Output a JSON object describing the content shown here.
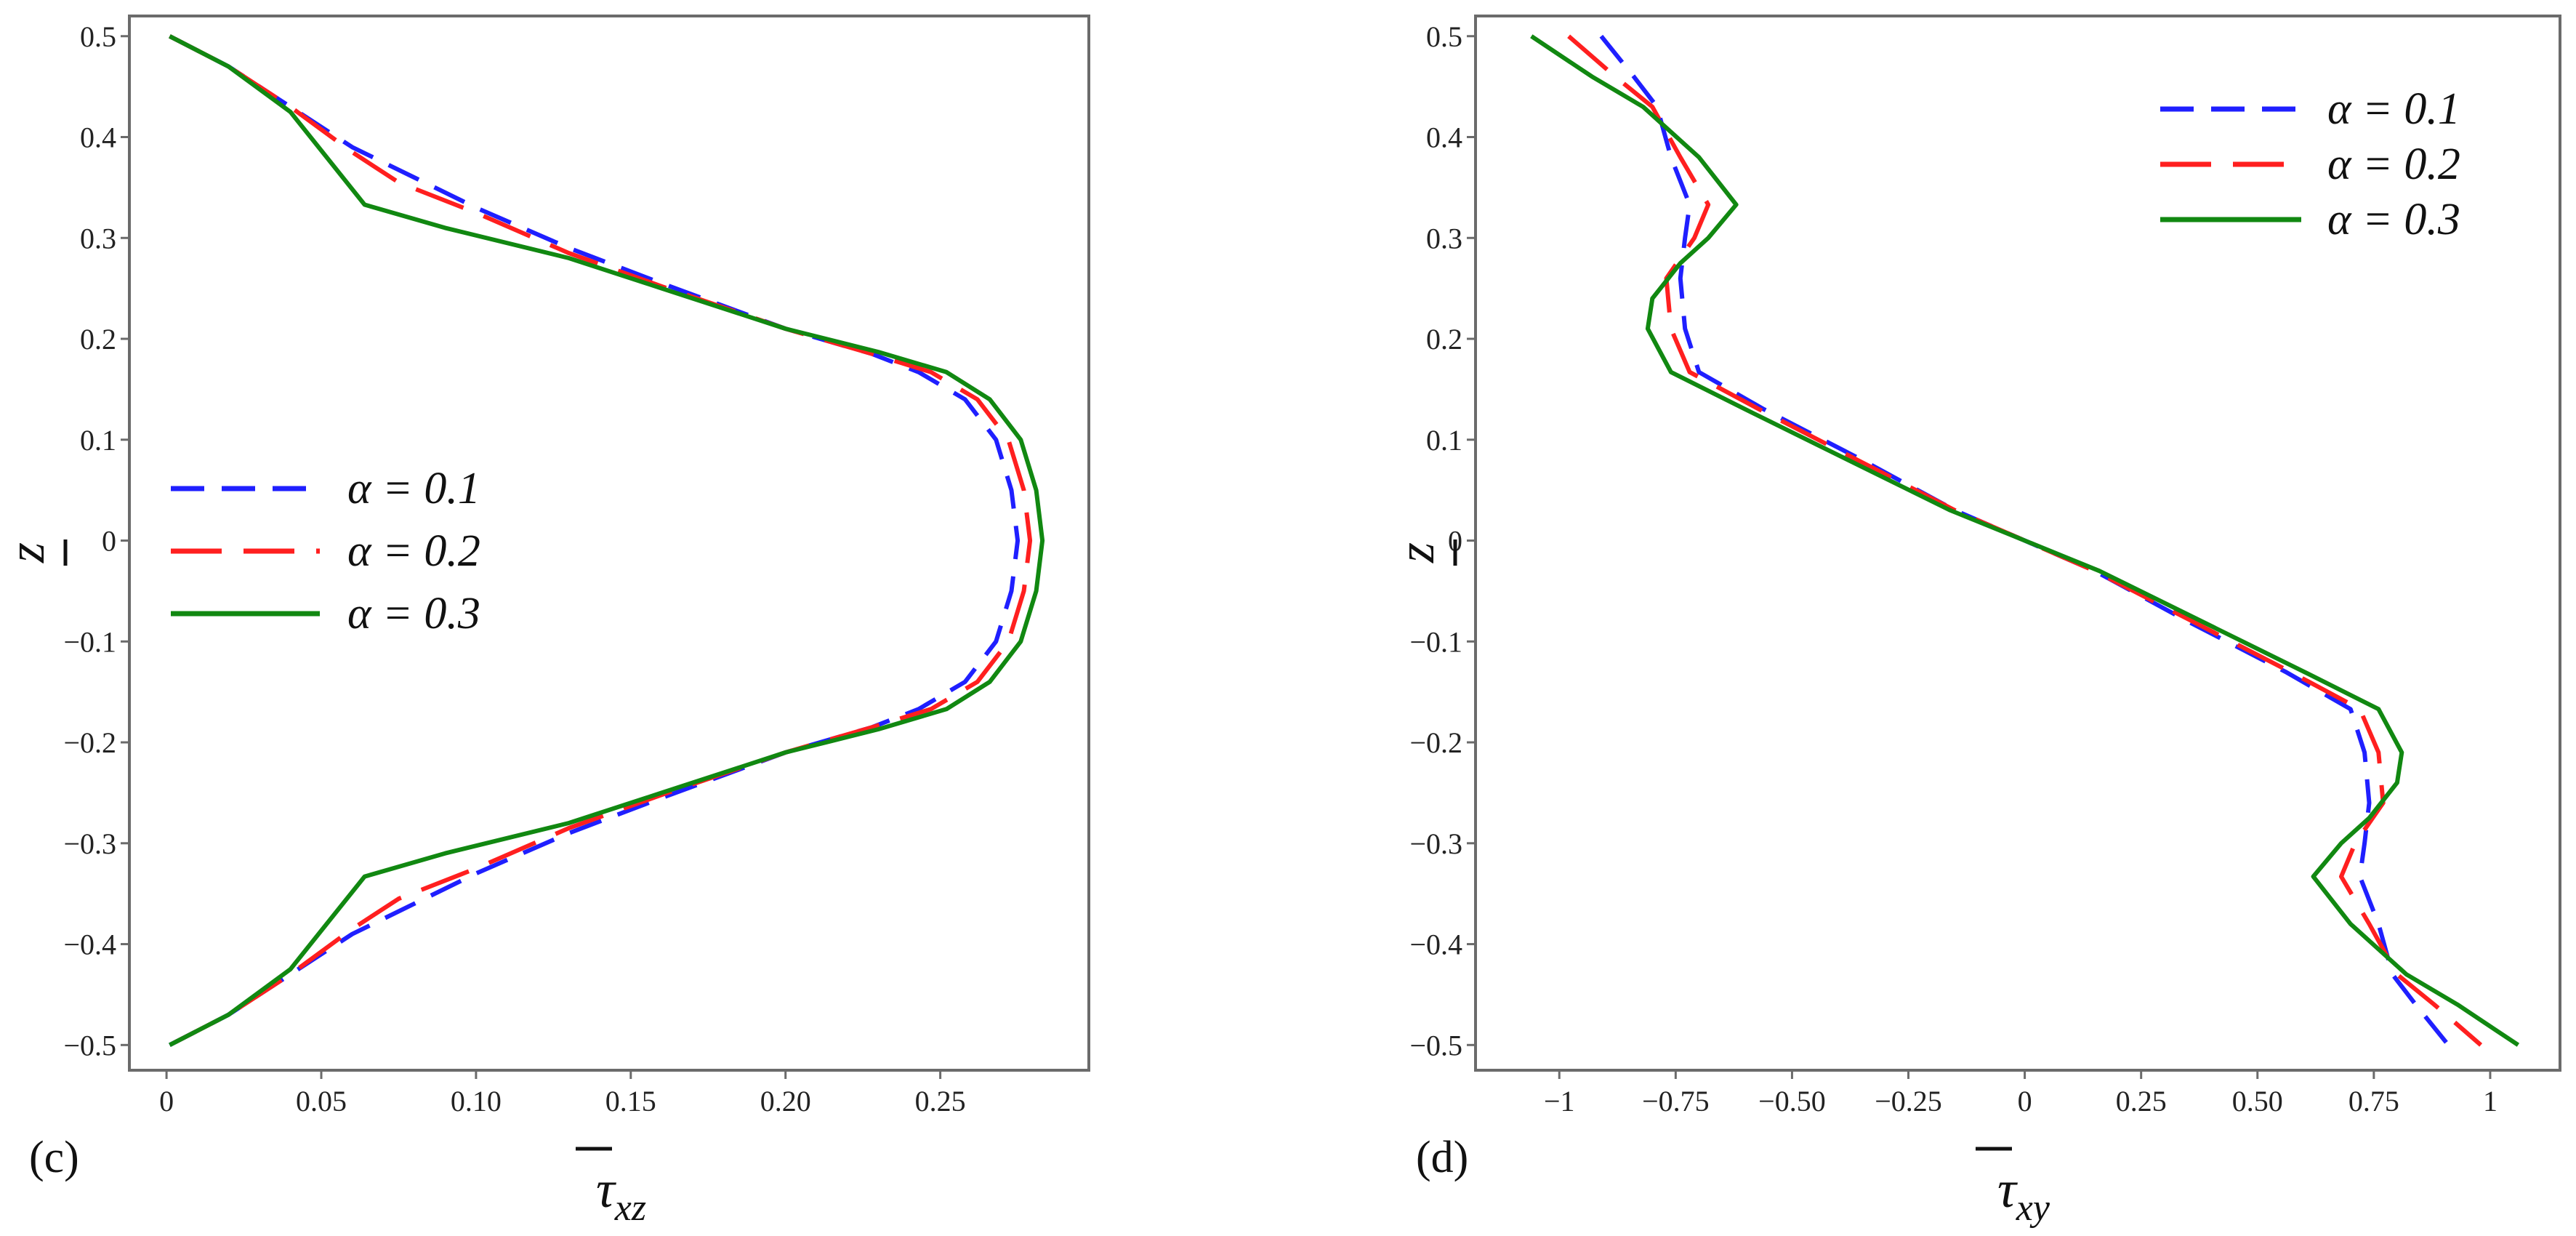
{
  "figure": {
    "panels": [
      "c",
      "d"
    ]
  },
  "colors": {
    "series": [
      "#1f1fff",
      "#ff1f1f",
      "#118811"
    ],
    "frame": "#6b6b6b",
    "background": "#ffffff"
  },
  "chart_data": [
    {
      "type": "line",
      "panel_label": "(c)",
      "title": "",
      "xlabel": "τ",
      "xlabel_sub": "xz",
      "ylabel": "z",
      "xlim": [
        -0.012,
        0.298
      ],
      "ylim": [
        -0.525,
        0.52
      ],
      "xticks": [
        0,
        0.05,
        0.1,
        0.15,
        0.2,
        0.25
      ],
      "xtick_labels": [
        "0",
        "0.05",
        "0.10",
        "0.15",
        "0.20",
        "0.25"
      ],
      "yticks": [
        0.5,
        0.4,
        0.3,
        0.2,
        0.1,
        0,
        -0.1,
        -0.2,
        -0.3,
        -0.4,
        -0.5
      ],
      "ytick_labels": [
        "0.5",
        "0.4",
        "0.3",
        "0.2",
        "0.1",
        "0",
        "−0.1",
        "−0.2",
        "−0.3",
        "−0.4",
        "−0.5"
      ],
      "grid": false,
      "legend_position": "center-left",
      "series": [
        {
          "name": "α = 0.1",
          "dash": "dashed",
          "points": [
            [
              0.001,
              0.5
            ],
            [
              0.02,
              0.47
            ],
            [
              0.04,
              0.43
            ],
            [
              0.06,
              0.39
            ],
            [
              0.08,
              0.36
            ],
            [
              0.1,
              0.33
            ],
            [
              0.13,
              0.29
            ],
            [
              0.16,
              0.255
            ],
            [
              0.2,
              0.21
            ],
            [
              0.228,
              0.185
            ],
            [
              0.243,
              0.167
            ],
            [
              0.258,
              0.14
            ],
            [
              0.268,
              0.1
            ],
            [
              0.273,
              0.05
            ],
            [
              0.275,
              0
            ],
            [
              0.273,
              -0.05
            ],
            [
              0.268,
              -0.1
            ],
            [
              0.258,
              -0.14
            ],
            [
              0.243,
              -0.167
            ],
            [
              0.228,
              -0.185
            ],
            [
              0.2,
              -0.21
            ],
            [
              0.16,
              -0.255
            ],
            [
              0.13,
              -0.29
            ],
            [
              0.1,
              -0.33
            ],
            [
              0.08,
              -0.36
            ],
            [
              0.06,
              -0.39
            ],
            [
              0.04,
              -0.43
            ],
            [
              0.02,
              -0.47
            ],
            [
              0.001,
              -0.5
            ]
          ]
        },
        {
          "name": "α = 0.2",
          "dash": "long-dash",
          "points": [
            [
              0.001,
              0.5
            ],
            [
              0.02,
              0.47
            ],
            [
              0.04,
              0.43
            ],
            [
              0.06,
              0.385
            ],
            [
              0.075,
              0.355
            ],
            [
              0.1,
              0.325
            ],
            [
              0.13,
              0.285
            ],
            [
              0.16,
              0.252
            ],
            [
              0.2,
              0.21
            ],
            [
              0.228,
              0.185
            ],
            [
              0.247,
              0.167
            ],
            [
              0.262,
              0.14
            ],
            [
              0.272,
              0.1
            ],
            [
              0.277,
              0.05
            ],
            [
              0.279,
              0
            ],
            [
              0.277,
              -0.05
            ],
            [
              0.272,
              -0.1
            ],
            [
              0.262,
              -0.14
            ],
            [
              0.247,
              -0.167
            ],
            [
              0.228,
              -0.185
            ],
            [
              0.2,
              -0.21
            ],
            [
              0.16,
              -0.252
            ],
            [
              0.13,
              -0.285
            ],
            [
              0.1,
              -0.325
            ],
            [
              0.075,
              -0.355
            ],
            [
              0.06,
              -0.385
            ],
            [
              0.04,
              -0.43
            ],
            [
              0.02,
              -0.47
            ],
            [
              0.001,
              -0.5
            ]
          ]
        },
        {
          "name": "α = 0.3",
          "dash": "solid",
          "points": [
            [
              0.001,
              0.5
            ],
            [
              0.02,
              0.47
            ],
            [
              0.04,
              0.425
            ],
            [
              0.064,
              0.333
            ],
            [
              0.09,
              0.31
            ],
            [
              0.13,
              0.28
            ],
            [
              0.16,
              0.25
            ],
            [
              0.2,
              0.21
            ],
            [
              0.23,
              0.187
            ],
            [
              0.252,
              0.167
            ],
            [
              0.266,
              0.14
            ],
            [
              0.276,
              0.1
            ],
            [
              0.281,
              0.05
            ],
            [
              0.283,
              0
            ],
            [
              0.281,
              -0.05
            ],
            [
              0.276,
              -0.1
            ],
            [
              0.266,
              -0.14
            ],
            [
              0.252,
              -0.167
            ],
            [
              0.23,
              -0.187
            ],
            [
              0.2,
              -0.21
            ],
            [
              0.16,
              -0.25
            ],
            [
              0.13,
              -0.28
            ],
            [
              0.09,
              -0.31
            ],
            [
              0.064,
              -0.333
            ],
            [
              0.04,
              -0.425
            ],
            [
              0.02,
              -0.47
            ],
            [
              0.001,
              -0.5
            ]
          ]
        }
      ]
    },
    {
      "type": "line",
      "panel_label": "(d)",
      "title": "",
      "xlabel": "τ",
      "xlabel_sub": "xy",
      "ylabel": "z",
      "xlim": [
        -1.18,
        1.15
      ],
      "ylim": [
        -0.525,
        0.52
      ],
      "xticks": [
        -1,
        -0.75,
        -0.5,
        -0.25,
        0,
        0.25,
        0.5,
        0.75,
        1
      ],
      "xtick_labels": [
        "−1",
        "−0.75",
        "−0.50",
        "−0.25",
        "0",
        "0.25",
        "0.50",
        "0.75",
        "1"
      ],
      "yticks": [
        0.5,
        0.4,
        0.3,
        0.2,
        0.1,
        0,
        -0.1,
        -0.2,
        -0.3,
        -0.4,
        -0.5
      ],
      "ytick_labels": [
        "0.5",
        "0.4",
        "0.3",
        "0.2",
        "0.1",
        "0",
        "−0.1",
        "−0.2",
        "−0.3",
        "−0.4",
        "−0.5"
      ],
      "grid": false,
      "legend_position": "top-right",
      "series": [
        {
          "name": "α = 0.1",
          "dash": "dashed",
          "points": [
            [
              -0.91,
              0.5
            ],
            [
              -0.84,
              0.46
            ],
            [
              -0.79,
              0.43
            ],
            [
              -0.76,
              0.38
            ],
            [
              -0.72,
              0.333
            ],
            [
              -0.73,
              0.3
            ],
            [
              -0.74,
              0.26
            ],
            [
              -0.73,
              0.21
            ],
            [
              -0.7,
              0.167
            ],
            [
              -0.56,
              0.13
            ],
            [
              -0.35,
              0.08
            ],
            [
              -0.15,
              0.03
            ],
            [
              0,
              0
            ],
            [
              0.15,
              -0.03
            ],
            [
              0.35,
              -0.08
            ],
            [
              0.56,
              -0.13
            ],
            [
              0.7,
              -0.167
            ],
            [
              0.73,
              -0.21
            ],
            [
              0.74,
              -0.26
            ],
            [
              0.73,
              -0.3
            ],
            [
              0.72,
              -0.333
            ],
            [
              0.76,
              -0.38
            ],
            [
              0.79,
              -0.43
            ],
            [
              0.84,
              -0.46
            ],
            [
              0.91,
              -0.5
            ]
          ]
        },
        {
          "name": "α = 0.2",
          "dash": "long-dash",
          "points": [
            [
              -0.98,
              0.5
            ],
            [
              -0.88,
              0.46
            ],
            [
              -0.8,
              0.43
            ],
            [
              -0.74,
              0.38
            ],
            [
              -0.68,
              0.333
            ],
            [
              -0.71,
              0.3
            ],
            [
              -0.77,
              0.26
            ],
            [
              -0.76,
              0.21
            ],
            [
              -0.72,
              0.167
            ],
            [
              -0.57,
              0.13
            ],
            [
              -0.36,
              0.08
            ],
            [
              -0.15,
              0.03
            ],
            [
              0,
              0
            ],
            [
              0.15,
              -0.03
            ],
            [
              0.36,
              -0.08
            ],
            [
              0.57,
              -0.13
            ],
            [
              0.72,
              -0.167
            ],
            [
              0.76,
              -0.21
            ],
            [
              0.77,
              -0.26
            ],
            [
              0.71,
              -0.3
            ],
            [
              0.68,
              -0.333
            ],
            [
              0.74,
              -0.38
            ],
            [
              0.8,
              -0.43
            ],
            [
              0.88,
              -0.46
            ],
            [
              0.98,
              -0.5
            ]
          ]
        },
        {
          "name": "α = 0.3",
          "dash": "solid",
          "points": [
            [
              -1.06,
              0.5
            ],
            [
              -0.93,
              0.46
            ],
            [
              -0.82,
              0.43
            ],
            [
              -0.7,
              0.38
            ],
            [
              -0.62,
              0.333
            ],
            [
              -0.68,
              0.3
            ],
            [
              -0.74,
              0.275
            ],
            [
              -0.8,
              0.24
            ],
            [
              -0.81,
              0.21
            ],
            [
              -0.76,
              0.167
            ],
            [
              -0.6,
              0.13
            ],
            [
              -0.38,
              0.08
            ],
            [
              -0.16,
              0.03
            ],
            [
              0,
              0
            ],
            [
              0.16,
              -0.03
            ],
            [
              0.38,
              -0.08
            ],
            [
              0.6,
              -0.13
            ],
            [
              0.76,
              -0.167
            ],
            [
              0.81,
              -0.21
            ],
            [
              0.8,
              -0.24
            ],
            [
              0.74,
              -0.275
            ],
            [
              0.68,
              -0.3
            ],
            [
              0.62,
              -0.333
            ],
            [
              0.7,
              -0.38
            ],
            [
              0.82,
              -0.43
            ],
            [
              0.93,
              -0.46
            ],
            [
              1.06,
              -0.5
            ]
          ]
        }
      ]
    }
  ]
}
